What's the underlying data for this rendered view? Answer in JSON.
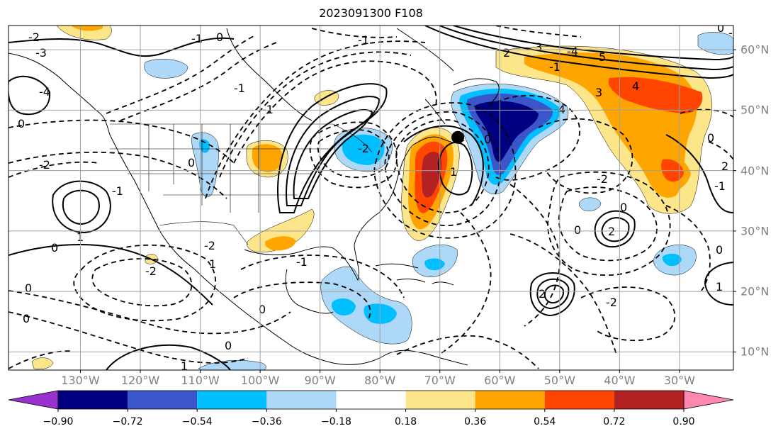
{
  "title": "2023091300 F108",
  "map": {
    "projection": "plate-carree",
    "lon_range": [
      -142,
      -21
    ],
    "lat_range": [
      7,
      64
    ],
    "gridlines": true,
    "lon_ticks": [
      {
        "value": -130,
        "label": "130°W"
      },
      {
        "value": -120,
        "label": "120°W"
      },
      {
        "value": -110,
        "label": "110°W"
      },
      {
        "value": -100,
        "label": "100°W"
      },
      {
        "value": -90,
        "label": "90°W"
      },
      {
        "value": -80,
        "label": "80°W"
      },
      {
        "value": -70,
        "label": "70°W"
      },
      {
        "value": -60,
        "label": "60°W"
      },
      {
        "value": -50,
        "label": "50°W"
      },
      {
        "value": -40,
        "label": "40°W"
      },
      {
        "value": -30,
        "label": "30°W"
      }
    ],
    "lat_ticks": [
      {
        "value": 60,
        "label": "60°N"
      },
      {
        "value": 50,
        "label": "50°N"
      },
      {
        "value": 40,
        "label": "40°N"
      },
      {
        "value": 30,
        "label": "30°N"
      },
      {
        "value": 20,
        "label": "20°N"
      },
      {
        "value": 10,
        "label": "10°N"
      }
    ],
    "marker": {
      "lon": -67,
      "lat": 45.5,
      "color": "#000000"
    }
  },
  "colorbar": {
    "levels": [
      "−0.90",
      "−0.72",
      "−0.54",
      "−0.36",
      "−0.18",
      "0.18",
      "0.36",
      "0.54",
      "0.72",
      "0.90"
    ],
    "colors": [
      "#9932cc",
      "#000080",
      "#3a56c9",
      "#00bfff",
      "#add8f7",
      "#ffffff",
      "#fde68a",
      "#ffa500",
      "#ff4500",
      "#b22222",
      "#ff88b0"
    ],
    "extend": "both"
  },
  "contour_labels": [
    "-2",
    "-3",
    "-4",
    "2",
    "1",
    "0",
    "-1",
    "3",
    "4",
    "5"
  ]
}
